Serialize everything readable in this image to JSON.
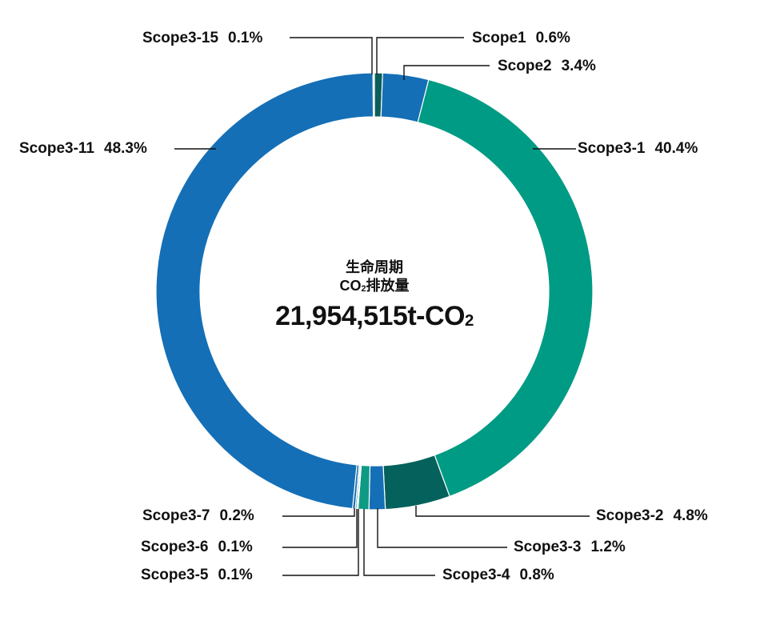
{
  "chart_data": {
    "type": "pie",
    "subtype": "donut",
    "title": "生命周期 CO2排放量",
    "center_text": {
      "line1": "生命周期",
      "line2_prefix": "CO",
      "line2_sub": "2",
      "line2_suffix": "排放量",
      "total_value": "21,954,515t-CO",
      "total_sub": "2"
    },
    "unit": "%",
    "categories": [
      "Scope1",
      "Scope2",
      "Scope3-1",
      "Scope3-2",
      "Scope3-3",
      "Scope3-4",
      "Scope3-5",
      "Scope3-6",
      "Scope3-7",
      "Scope3-11",
      "Scope3-15"
    ],
    "values": [
      0.6,
      3.4,
      40.4,
      4.8,
      1.2,
      0.8,
      0.1,
      0.1,
      0.2,
      48.3,
      0.1
    ],
    "colors": [
      "#0b5e59",
      "#146fb6",
      "#009b84",
      "#04615c",
      "#146fb6",
      "#0f9a84",
      "#b9dde8",
      "#0b5e59",
      "#146fb6",
      "#146fb6",
      "#b9dde8"
    ],
    "start_angle_deg": 0,
    "direction": "clockwise",
    "legend_position": "callout labels"
  },
  "labels": [
    {
      "name": "Scope1",
      "pct": "0.6%"
    },
    {
      "name": "Scope2",
      "pct": "3.4%"
    },
    {
      "name": "Scope3-1",
      "pct": "40.4%"
    },
    {
      "name": "Scope3-2",
      "pct": "4.8%"
    },
    {
      "name": "Scope3-3",
      "pct": "1.2%"
    },
    {
      "name": "Scope3-4",
      "pct": "0.8%"
    },
    {
      "name": "Scope3-5",
      "pct": "0.1%"
    },
    {
      "name": "Scope3-6",
      "pct": "0.1%"
    },
    {
      "name": "Scope3-7",
      "pct": "0.2%"
    },
    {
      "name": "Scope3-11",
      "pct": "48.3%"
    },
    {
      "name": "Scope3-15",
      "pct": "0.1%"
    }
  ]
}
